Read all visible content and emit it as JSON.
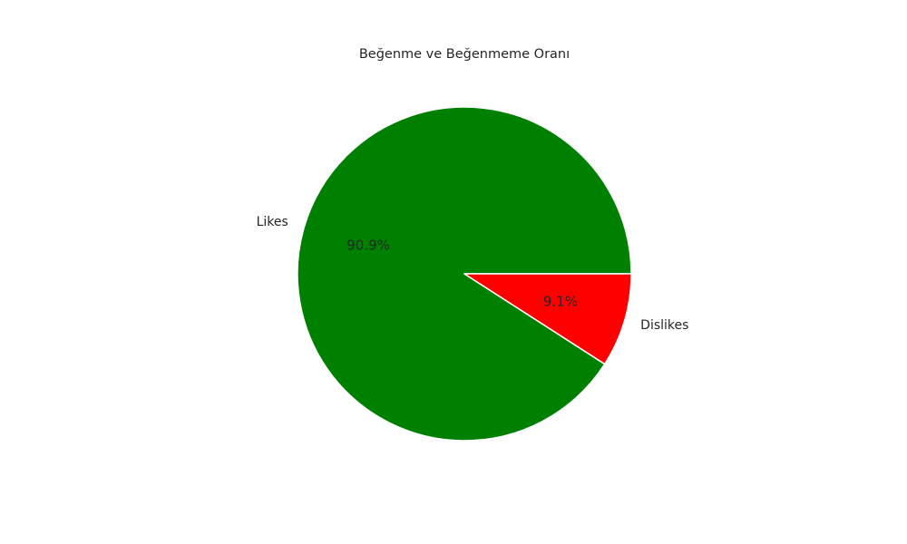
{
  "chart_data": {
    "type": "pie",
    "title": "Beğenme ve Beğenmeme Oranı",
    "categories": [
      "Likes",
      "Dislikes"
    ],
    "values": [
      90.9,
      9.1
    ],
    "percent_labels": [
      "90.9%",
      "9.1%"
    ],
    "colors": [
      "#008000",
      "#ff0000"
    ],
    "start_angle": 0,
    "direction": "counterclockwise",
    "legend": "none"
  }
}
